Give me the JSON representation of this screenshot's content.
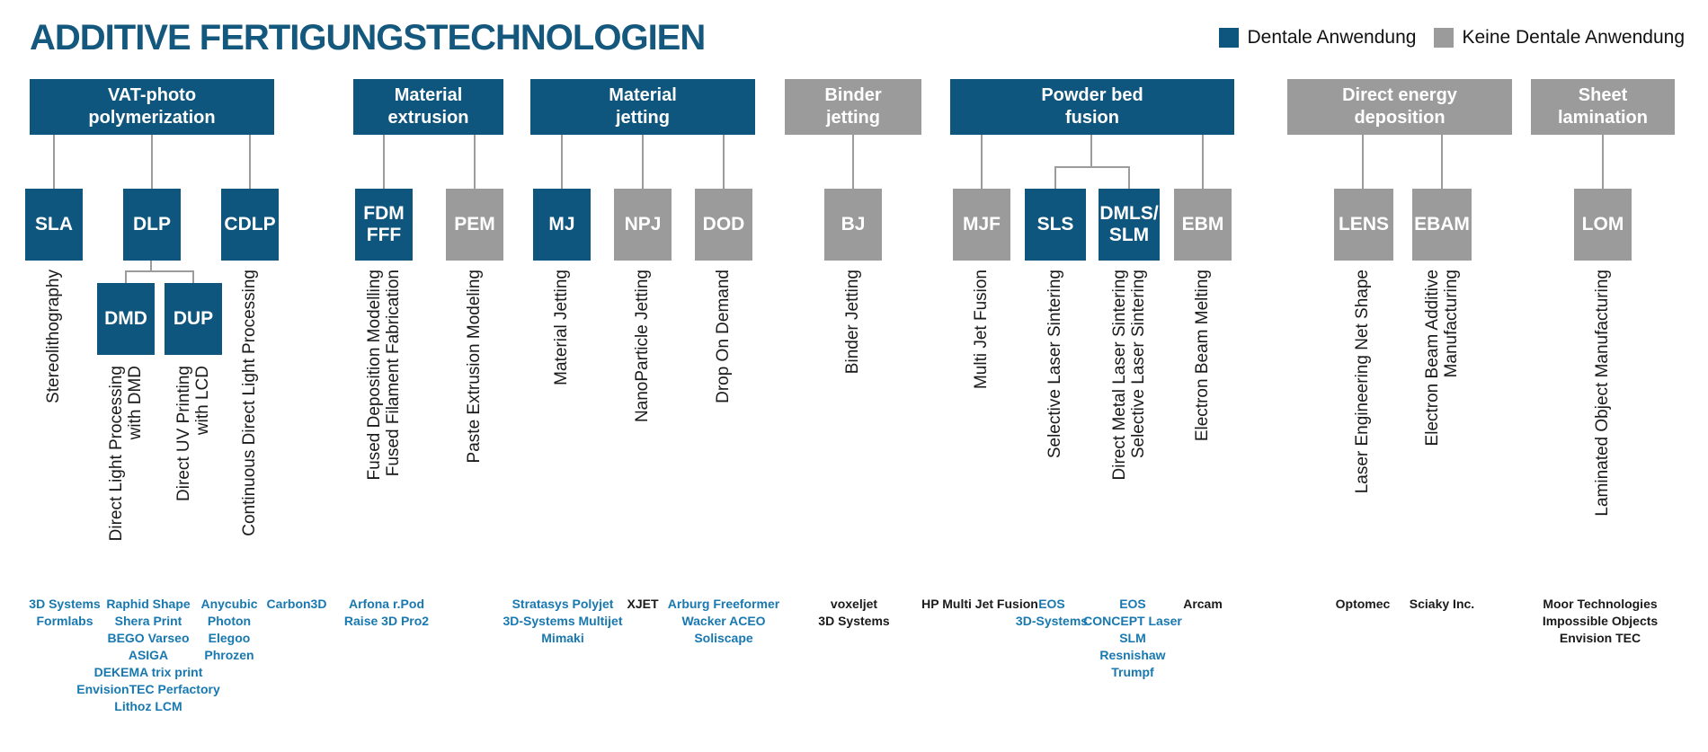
{
  "title": "ADDITIVE FERTIGUNGSTECHNOLOGIEN",
  "legend": {
    "items": [
      {
        "label": "Dentale Anwendung",
        "color": "#0E567E"
      },
      {
        "label": "Keine Dentale Anwendung",
        "color": "#9B9B9B"
      }
    ]
  },
  "palette": {
    "dental_blue": "#0E567E",
    "non_dental_gray": "#9B9B9B",
    "company_blue": "#1878B0",
    "title_blue": "#14587E",
    "text_black": "#1A1A1A",
    "connector_gray": "#9C9C9C"
  },
  "groups": [
    {
      "category_lines": [
        "VAT-photo",
        "polymerization"
      ],
      "dental": true,
      "children": [
        {
          "code_lines": [
            "SLA"
          ],
          "dental": true,
          "method_lines": [
            "Stereolithography"
          ],
          "companies": [
            "3D Systems",
            "Formlabs"
          ]
        },
        {
          "code_lines": [
            "DLP"
          ],
          "dental": true,
          "children": [
            {
              "code_lines": [
                "DMD"
              ],
              "dental": true,
              "method_lines": [
                "Direct Light Processing",
                "with DMD"
              ],
              "companies": [
                "Raphid Shape",
                "Shera Print",
                "BEGO Varseo",
                "ASIGA",
                "DEKEMA trix print",
                "EnvisionTEC Perfactory",
                "Lithoz LCM"
              ]
            },
            {
              "code_lines": [
                "DUP"
              ],
              "dental": true,
              "method_lines": [
                "Direct UV Printing",
                "with LCD"
              ],
              "companies": [
                "Anycubic",
                "Photon",
                "Elegoo",
                "Phrozen"
              ]
            }
          ]
        },
        {
          "code_lines": [
            "CDLP"
          ],
          "dental": true,
          "method_lines": [
            "Continuous Direct Light Processing"
          ],
          "companies": [
            "Carbon3D"
          ]
        }
      ]
    },
    {
      "category_lines": [
        "Material",
        "extrusion"
      ],
      "dental": true,
      "children": [
        {
          "code_lines": [
            "FDM",
            "FFF"
          ],
          "dental": true,
          "method_lines": [
            "Fused Deposition Modelling",
            "Fused Filament Fabrication"
          ],
          "companies": [
            "Arfona r.Pod",
            "Raise 3D Pro2"
          ]
        },
        {
          "code_lines": [
            "PEM"
          ],
          "dental": false,
          "method_lines": [
            "Paste Extrusion Modeling"
          ],
          "companies": []
        }
      ]
    },
    {
      "category_lines": [
        "Material",
        "jetting"
      ],
      "dental": true,
      "children": [
        {
          "code_lines": [
            "MJ"
          ],
          "dental": true,
          "method_lines": [
            "Material Jetting"
          ],
          "companies": [
            "Stratasys Polyjet",
            "3D-Systems Multijet",
            "Mimaki"
          ]
        },
        {
          "code_lines": [
            "NPJ"
          ],
          "dental": false,
          "method_lines": [
            "NanoParticle Jetting"
          ],
          "companies": [
            "XJET"
          ]
        },
        {
          "code_lines": [
            "DOD"
          ],
          "dental": false,
          "method_lines": [
            "Drop On Demand"
          ],
          "companies": [
            "Arburg Freeformer",
            "Wacker ACEO",
            "Soliscape"
          ]
        }
      ]
    },
    {
      "category_lines": [
        "Binder",
        "jetting"
      ],
      "dental": false,
      "children": [
        {
          "code_lines": [
            "BJ"
          ],
          "dental": false,
          "method_lines": [
            "Binder Jetting"
          ],
          "companies": [
            "voxeljet",
            "3D Systems"
          ]
        }
      ]
    },
    {
      "category_lines": [
        "Powder bed",
        "fusion"
      ],
      "dental": true,
      "children": [
        {
          "code_lines": [
            "MJF"
          ],
          "dental": false,
          "method_lines": [
            "Multi Jet Fusion"
          ],
          "companies": [
            "HP Multi Jet Fusion"
          ]
        },
        {
          "code_lines": [
            "SLS"
          ],
          "dental": true,
          "method_lines": [
            "Selective Laser Sintering"
          ],
          "companies": [
            "EOS",
            "3D-Systems"
          ]
        },
        {
          "code_lines": [
            "DMLS/",
            "SLM"
          ],
          "dental": true,
          "method_lines": [
            "Direct Metal Laser Sintering",
            "Selective Laser Sintering"
          ],
          "companies": [
            "EOS",
            "CONCEPT Laser",
            "SLM",
            "Resnishaw",
            "Trumpf"
          ]
        },
        {
          "code_lines": [
            "EBM"
          ],
          "dental": false,
          "method_lines": [
            "Electron Beam Melting"
          ],
          "companies": [
            "Arcam"
          ]
        }
      ]
    },
    {
      "category_lines": [
        "Direct energy",
        "deposition"
      ],
      "dental": false,
      "children": [
        {
          "code_lines": [
            "LENS"
          ],
          "dental": false,
          "method_lines": [
            "Laser Engineering Net Shape"
          ],
          "companies": [
            "Optomec"
          ]
        },
        {
          "code_lines": [
            "EBAM"
          ],
          "dental": false,
          "method_lines": [
            "Electron Beam Additive",
            "Manufacturing"
          ],
          "companies": [
            "Sciaky Inc."
          ]
        }
      ]
    },
    {
      "category_lines": [
        "Sheet",
        "lamination"
      ],
      "dental": false,
      "children": [
        {
          "code_lines": [
            "LOM"
          ],
          "dental": false,
          "method_lines": [
            "Laminated Object Manufacturing"
          ],
          "companies": [
            "Moor Technologies",
            "Impossible Objects",
            "Envision TEC"
          ]
        }
      ]
    }
  ]
}
